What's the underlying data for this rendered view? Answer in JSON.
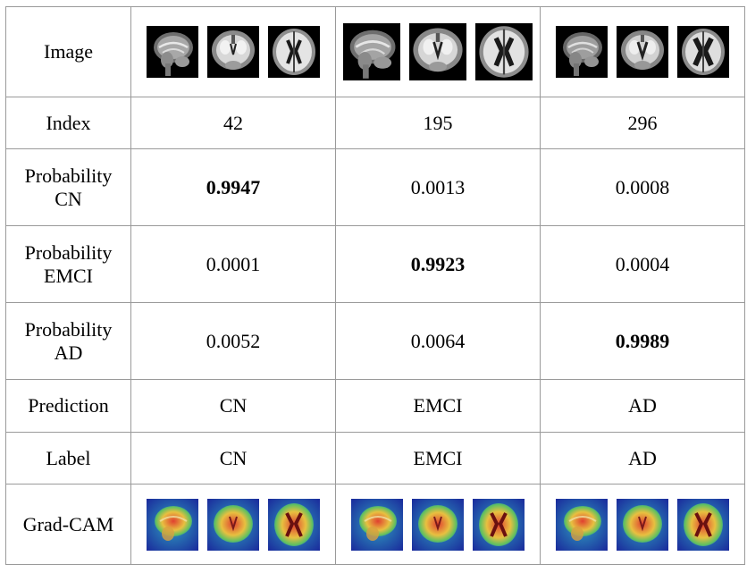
{
  "row_headers": {
    "image": "Image",
    "index": "Index",
    "prob_cn": "Probability\nCN",
    "prob_emci": "Probability\nEMCI",
    "prob_ad": "Probability\nAD",
    "prediction": "Prediction",
    "label": "Label",
    "gradcam": "Grad-CAM"
  },
  "samples": [
    {
      "index": "42",
      "prob_cn": "0.9947",
      "prob_emci": "0.0001",
      "prob_ad": "0.0052",
      "prediction": "CN",
      "label": "CN"
    },
    {
      "index": "195",
      "prob_cn": "0.0013",
      "prob_emci": "0.9923",
      "prob_ad": "0.0064",
      "prediction": "EMCI",
      "label": "EMCI"
    },
    {
      "index": "296",
      "prob_cn": "0.0008",
      "prob_emci": "0.0004",
      "prob_ad": "0.9989",
      "prediction": "AD",
      "label": "AD"
    }
  ],
  "image_views": [
    "sagittal",
    "coronal",
    "axial"
  ],
  "colors": {
    "border": "#9a9a9a",
    "mri_background": "#000000",
    "heatmap_cold": "#1a2a9c",
    "heatmap_warm": "#e04030"
  }
}
